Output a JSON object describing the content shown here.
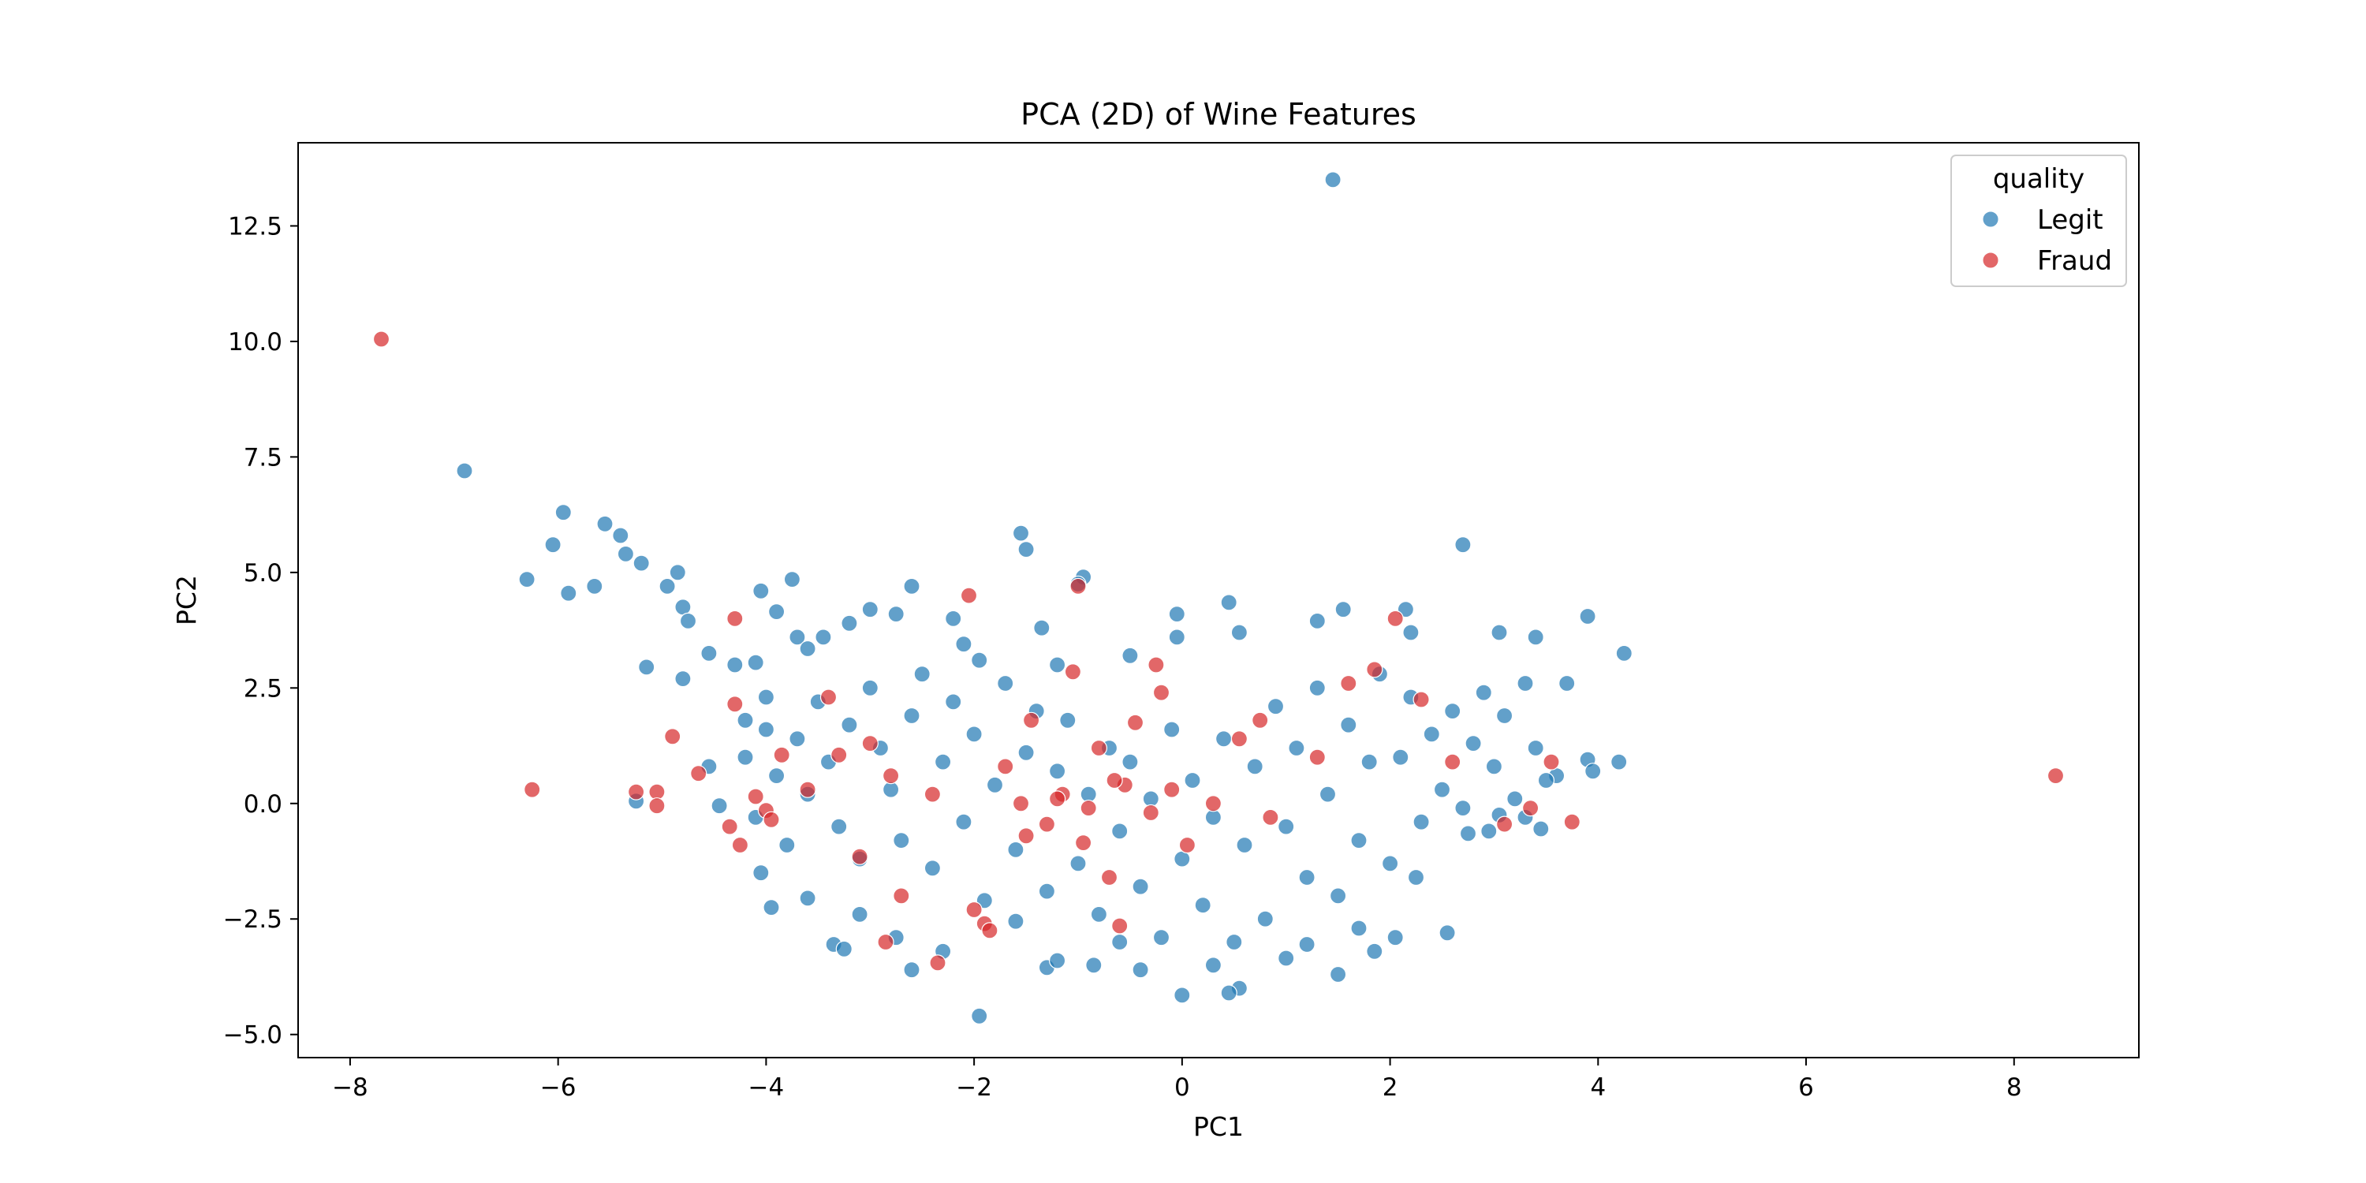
{
  "chart_data": {
    "type": "scatter",
    "title": "PCA (2D) of Wine Features",
    "xlabel": "PC1",
    "ylabel": "PC2",
    "xlim": [
      -8.5,
      9.2
    ],
    "ylim": [
      -5.5,
      14.3
    ],
    "xticks": [
      -8,
      -6,
      -4,
      -2,
      0,
      2,
      4,
      6,
      8
    ],
    "xtick_labels": [
      "−8",
      "−6",
      "−4",
      "−2",
      "0",
      "2",
      "4",
      "6",
      "8"
    ],
    "yticks": [
      -5.0,
      -2.5,
      0.0,
      2.5,
      5.0,
      7.5,
      10.0,
      12.5
    ],
    "ytick_labels": [
      "−5.0",
      "−2.5",
      "0.0",
      "2.5",
      "5.0",
      "7.5",
      "10.0",
      "12.5"
    ],
    "grid": false,
    "legend": {
      "title": "quality",
      "placement": "top-right",
      "entries": [
        {
          "label": "Legit",
          "color": "#1f77b4"
        },
        {
          "label": "Fraud",
          "color": "#d62728"
        }
      ]
    },
    "series": [
      {
        "name": "Legit",
        "color": "#1f77b4",
        "points": [
          [
            1.45,
            13.5
          ],
          [
            -6.9,
            7.2
          ],
          [
            -5.95,
            6.3
          ],
          [
            -6.05,
            5.6
          ],
          [
            -5.55,
            6.05
          ],
          [
            -5.4,
            5.8
          ],
          [
            -5.2,
            5.2
          ],
          [
            -5.35,
            5.4
          ],
          [
            -5.65,
            4.7
          ],
          [
            -5.9,
            4.55
          ],
          [
            -6.3,
            4.85
          ],
          [
            -4.85,
            5.0
          ],
          [
            -4.95,
            4.7
          ],
          [
            -4.8,
            4.25
          ],
          [
            -5.15,
            2.95
          ],
          [
            -4.75,
            3.95
          ],
          [
            -4.55,
            3.25
          ],
          [
            -4.8,
            2.7
          ],
          [
            -4.3,
            3.0
          ],
          [
            -4.1,
            3.05
          ],
          [
            -4.05,
            4.6
          ],
          [
            -3.75,
            4.85
          ],
          [
            -3.9,
            4.15
          ],
          [
            -3.7,
            3.6
          ],
          [
            -3.6,
            3.35
          ],
          [
            -3.45,
            3.6
          ],
          [
            -3.2,
            3.9
          ],
          [
            -3.0,
            4.2
          ],
          [
            -2.75,
            4.1
          ],
          [
            -2.6,
            4.7
          ],
          [
            -2.2,
            4.0
          ],
          [
            -2.1,
            3.45
          ],
          [
            -1.95,
            3.1
          ],
          [
            -1.55,
            5.85
          ],
          [
            -1.5,
            5.5
          ],
          [
            -1.35,
            3.8
          ],
          [
            -1.2,
            3.0
          ],
          [
            -0.95,
            4.9
          ],
          [
            -1.0,
            4.75
          ],
          [
            -0.5,
            3.2
          ],
          [
            -0.05,
            4.1
          ],
          [
            -0.05,
            3.6
          ],
          [
            0.45,
            4.35
          ],
          [
            0.55,
            3.7
          ],
          [
            1.3,
            3.95
          ],
          [
            1.55,
            4.2
          ],
          [
            2.15,
            4.2
          ],
          [
            2.2,
            3.7
          ],
          [
            2.7,
            5.6
          ],
          [
            3.05,
            3.7
          ],
          [
            3.4,
            3.6
          ],
          [
            3.7,
            2.6
          ],
          [
            3.9,
            4.05
          ],
          [
            4.25,
            3.25
          ],
          [
            3.9,
            0.95
          ],
          [
            3.95,
            0.7
          ],
          [
            4.2,
            0.9
          ],
          [
            3.6,
            0.6
          ],
          [
            3.3,
            -0.3
          ],
          [
            3.45,
            -0.55
          ],
          [
            3.05,
            -0.25
          ],
          [
            2.75,
            -0.65
          ],
          [
            2.55,
            -2.8
          ],
          [
            2.05,
            -2.9
          ],
          [
            1.85,
            -3.2
          ],
          [
            1.5,
            -3.7
          ],
          [
            0.55,
            -4.0
          ],
          [
            0.45,
            -4.1
          ],
          [
            0.0,
            -4.15
          ],
          [
            -0.4,
            -3.6
          ],
          [
            -0.85,
            -3.5
          ],
          [
            -1.3,
            -3.55
          ],
          [
            -1.95,
            -4.6
          ],
          [
            -2.3,
            -3.2
          ],
          [
            -2.6,
            -3.6
          ],
          [
            -3.35,
            -3.05
          ],
          [
            -3.25,
            -3.15
          ],
          [
            -3.95,
            -2.25
          ],
          [
            -4.05,
            -1.5
          ],
          [
            -4.45,
            -0.05
          ],
          [
            -5.25,
            0.05
          ],
          [
            -4.55,
            0.8
          ],
          [
            -4.2,
            1.0
          ],
          [
            -4.0,
            1.6
          ],
          [
            -3.6,
            -2.05
          ],
          [
            -3.1,
            -2.4
          ],
          [
            -2.75,
            -2.9
          ],
          [
            -1.6,
            -2.55
          ],
          [
            -1.2,
            -3.4
          ],
          [
            -0.6,
            -3.0
          ],
          [
            0.3,
            -3.5
          ],
          [
            1.0,
            -3.35
          ],
          [
            1.2,
            -3.05
          ],
          [
            1.7,
            -2.7
          ],
          [
            2.25,
            -1.6
          ],
          [
            2.95,
            -0.6
          ],
          [
            -3.0,
            2.5
          ],
          [
            -2.9,
            1.2
          ],
          [
            -2.8,
            0.3
          ],
          [
            -2.7,
            -0.8
          ],
          [
            -2.6,
            1.9
          ],
          [
            -2.5,
            2.8
          ],
          [
            -2.4,
            -1.4
          ],
          [
            -2.3,
            0.9
          ],
          [
            -2.2,
            2.2
          ],
          [
            -2.1,
            -0.4
          ],
          [
            -2.0,
            1.5
          ],
          [
            -1.9,
            -2.1
          ],
          [
            -1.8,
            0.4
          ],
          [
            -1.7,
            2.6
          ],
          [
            -1.6,
            -1.0
          ],
          [
            -1.5,
            1.1
          ],
          [
            -1.4,
            2.0
          ],
          [
            -1.3,
            -1.9
          ],
          [
            -1.2,
            0.7
          ],
          [
            -1.1,
            1.8
          ],
          [
            -1.0,
            -1.3
          ],
          [
            -0.9,
            0.2
          ],
          [
            -0.8,
            -2.4
          ],
          [
            -0.7,
            1.2
          ],
          [
            -0.6,
            -0.6
          ],
          [
            -0.5,
            0.9
          ],
          [
            -0.4,
            -1.8
          ],
          [
            -0.3,
            0.1
          ],
          [
            -0.2,
            -2.9
          ],
          [
            -0.1,
            1.6
          ],
          [
            0.0,
            -1.2
          ],
          [
            0.1,
            0.5
          ],
          [
            0.2,
            -2.2
          ],
          [
            0.3,
            -0.3
          ],
          [
            0.4,
            1.4
          ],
          [
            0.5,
            -3.0
          ],
          [
            0.6,
            -0.9
          ],
          [
            0.7,
            0.8
          ],
          [
            0.8,
            -2.5
          ],
          [
            0.9,
            2.1
          ],
          [
            1.0,
            -0.5
          ],
          [
            1.1,
            1.2
          ],
          [
            1.2,
            -1.6
          ],
          [
            1.3,
            2.5
          ],
          [
            1.4,
            0.2
          ],
          [
            1.5,
            -2.0
          ],
          [
            1.6,
            1.7
          ],
          [
            1.7,
            -0.8
          ],
          [
            1.8,
            0.9
          ],
          [
            1.9,
            2.8
          ],
          [
            2.0,
            -1.3
          ],
          [
            2.1,
            1.0
          ],
          [
            2.2,
            2.3
          ],
          [
            2.3,
            -0.4
          ],
          [
            2.4,
            1.5
          ],
          [
            2.5,
            0.3
          ],
          [
            2.6,
            2.0
          ],
          [
            2.7,
            -0.1
          ],
          [
            2.8,
            1.3
          ],
          [
            2.9,
            2.4
          ],
          [
            3.0,
            0.8
          ],
          [
            3.1,
            1.9
          ],
          [
            3.2,
            0.1
          ],
          [
            3.3,
            2.6
          ],
          [
            3.4,
            1.2
          ],
          [
            3.5,
            0.5
          ],
          [
            -3.4,
            0.9
          ],
          [
            -3.3,
            -0.5
          ],
          [
            -3.2,
            1.7
          ],
          [
            -3.1,
            -1.2
          ],
          [
            -3.5,
            2.2
          ],
          [
            -3.6,
            0.2
          ],
          [
            -3.7,
            1.4
          ],
          [
            -3.8,
            -0.9
          ],
          [
            -3.9,
            0.6
          ],
          [
            -4.0,
            2.3
          ],
          [
            -4.1,
            -0.3
          ],
          [
            -4.2,
            1.8
          ]
        ]
      },
      {
        "name": "Fraud",
        "color": "#d62728",
        "points": [
          [
            -7.7,
            10.05
          ],
          [
            8.4,
            0.6
          ],
          [
            -6.25,
            0.3
          ],
          [
            -5.25,
            0.25
          ],
          [
            -5.05,
            0.25
          ],
          [
            -5.05,
            -0.05
          ],
          [
            -4.9,
            1.45
          ],
          [
            -4.65,
            0.65
          ],
          [
            -4.35,
            -0.5
          ],
          [
            -4.25,
            -0.9
          ],
          [
            -4.3,
            4.0
          ],
          [
            -4.3,
            2.15
          ],
          [
            -4.1,
            0.15
          ],
          [
            -4.0,
            -0.15
          ],
          [
            -3.95,
            -0.35
          ],
          [
            -3.85,
            1.05
          ],
          [
            -3.6,
            0.3
          ],
          [
            -3.4,
            2.3
          ],
          [
            -3.3,
            1.05
          ],
          [
            -3.1,
            -1.15
          ],
          [
            -2.85,
            -3.0
          ],
          [
            -2.7,
            -2.0
          ],
          [
            -2.35,
            -3.45
          ],
          [
            -2.05,
            4.5
          ],
          [
            -2.0,
            -2.3
          ],
          [
            -1.9,
            -2.6
          ],
          [
            -1.85,
            -2.75
          ],
          [
            -1.55,
            0.0
          ],
          [
            -1.5,
            -0.7
          ],
          [
            -1.45,
            1.8
          ],
          [
            -1.3,
            -0.45
          ],
          [
            -1.15,
            0.2
          ],
          [
            -1.05,
            2.85
          ],
          [
            -1.0,
            4.7
          ],
          [
            -0.95,
            -0.85
          ],
          [
            -0.9,
            -0.1
          ],
          [
            -0.8,
            1.2
          ],
          [
            -0.7,
            -1.6
          ],
          [
            -0.6,
            -2.65
          ],
          [
            -0.55,
            0.4
          ],
          [
            -0.45,
            1.75
          ],
          [
            -0.3,
            -0.2
          ],
          [
            -0.25,
            3.0
          ],
          [
            -0.2,
            2.4
          ],
          [
            -0.1,
            0.3
          ],
          [
            0.05,
            -0.9
          ],
          [
            0.3,
            0.0
          ],
          [
            0.55,
            1.4
          ],
          [
            0.75,
            1.8
          ],
          [
            0.85,
            -0.3
          ],
          [
            1.3,
            1.0
          ],
          [
            1.6,
            2.6
          ],
          [
            1.85,
            2.9
          ],
          [
            2.05,
            4.0
          ],
          [
            2.3,
            2.25
          ],
          [
            2.6,
            0.9
          ],
          [
            3.1,
            -0.45
          ],
          [
            3.35,
            -0.1
          ],
          [
            3.55,
            0.9
          ],
          [
            3.75,
            -0.4
          ],
          [
            -2.4,
            0.2
          ],
          [
            -1.7,
            0.8
          ],
          [
            -1.2,
            0.1
          ],
          [
            -0.65,
            0.5
          ],
          [
            -2.8,
            0.6
          ],
          [
            -3.0,
            1.3
          ]
        ]
      }
    ]
  }
}
